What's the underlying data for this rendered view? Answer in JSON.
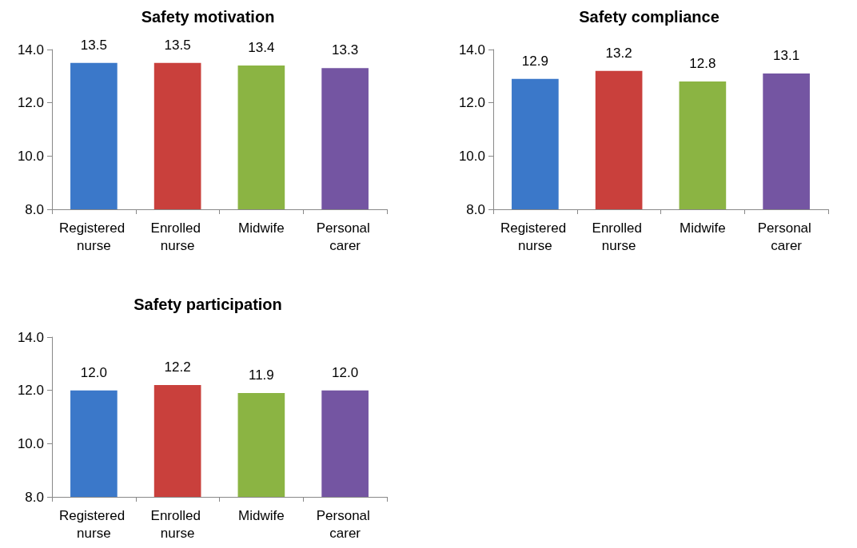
{
  "chart_data": [
    {
      "type": "bar",
      "title": "Safety motivation",
      "categories": [
        "Registered nurse",
        "Enrolled nurse",
        "Midwife",
        "Personal carer"
      ],
      "values": [
        13.5,
        13.5,
        13.4,
        13.3
      ],
      "value_labels": [
        "13.5",
        "13.5",
        "13.4",
        "13.3"
      ],
      "colors": [
        "#3b78c9",
        "#c9403c",
        "#8bb443",
        "#7455a2"
      ],
      "ylim": [
        8,
        14
      ],
      "yticks": [
        {
          "value": 8,
          "label": "8.0"
        },
        {
          "value": 10,
          "label": "10.0"
        },
        {
          "value": 12,
          "label": "12.0"
        },
        {
          "value": 14,
          "label": "14.0"
        }
      ],
      "grid": false
    },
    {
      "type": "bar",
      "title": "Safety compliance",
      "categories": [
        "Registered nurse",
        "Enrolled nurse",
        "Midwife",
        "Personal carer"
      ],
      "values": [
        12.9,
        13.2,
        12.8,
        13.1
      ],
      "value_labels": [
        "12.9",
        "13.2",
        "12.8",
        "13.1"
      ],
      "colors": [
        "#3b78c9",
        "#c9403c",
        "#8bb443",
        "#7455a2"
      ],
      "ylim": [
        8,
        14
      ],
      "yticks": [
        {
          "value": 8,
          "label": "8.0"
        },
        {
          "value": 10,
          "label": "10.0"
        },
        {
          "value": 12,
          "label": "12.0"
        },
        {
          "value": 14,
          "label": "14.0"
        }
      ],
      "grid": false
    },
    {
      "type": "bar",
      "title": "Safety participation",
      "categories": [
        "Registered nurse",
        "Enrolled nurse",
        "Midwife",
        "Personal carer"
      ],
      "values": [
        12.0,
        12.2,
        11.9,
        12.0
      ],
      "value_labels": [
        "12.0",
        "12.2",
        "11.9",
        "12.0"
      ],
      "colors": [
        "#3b78c9",
        "#c9403c",
        "#8bb443",
        "#7455a2"
      ],
      "ylim": [
        8,
        14
      ],
      "yticks": [
        {
          "value": 8,
          "label": "8.0"
        },
        {
          "value": 10,
          "label": "10.0"
        },
        {
          "value": 12,
          "label": "12.0"
        },
        {
          "value": 14,
          "label": "14.0"
        }
      ],
      "grid": false
    }
  ]
}
